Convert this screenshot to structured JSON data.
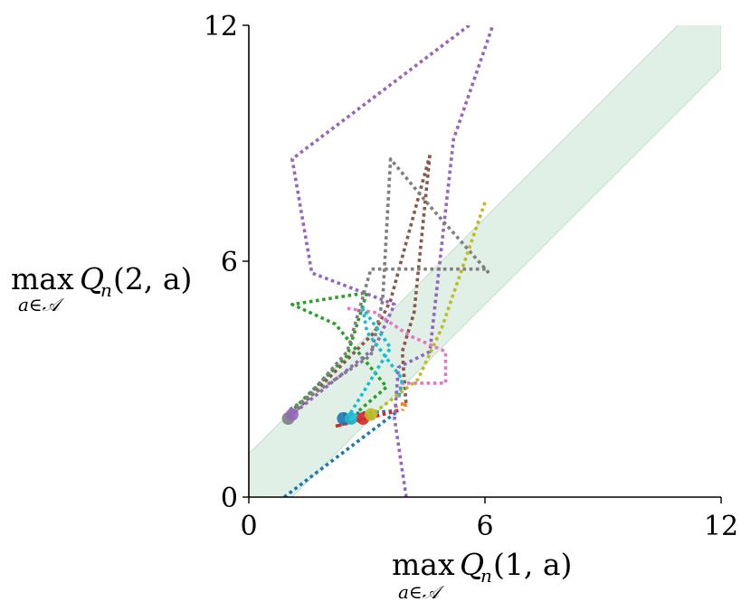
{
  "chart_data": {
    "type": "line",
    "title": "",
    "xlabel": {
      "operator": "max",
      "subscript": "a∈𝒜",
      "expr": "Q",
      "sub": "n",
      "args": "(1, a)"
    },
    "ylabel": {
      "operator": "max",
      "subscript": "a∈𝒜",
      "expr": "Q",
      "sub": "n",
      "args": "(2, a)"
    },
    "xlim": [
      0,
      12
    ],
    "ylim": [
      0,
      12
    ],
    "xticks": [
      0,
      6,
      12
    ],
    "yticks": [
      0,
      6,
      12
    ],
    "xtick_labels": [
      "0",
      "6",
      "12"
    ],
    "ytick_labels": [
      "0",
      "6",
      "12"
    ],
    "grid": false,
    "band": {
      "description_color": "#d4eadb",
      "lower_offset": -1.1,
      "upper_offset": 1.1,
      "x_range": [
        0,
        12
      ]
    },
    "series": [
      {
        "color": "#1f77b4",
        "points": [
          [
            0.9,
            0
          ],
          [
            3.8,
            2.2
          ],
          [
            2.3,
            2.1
          ]
        ]
      },
      {
        "color": "#d62728",
        "points": [
          [
            3.8,
            2.2
          ],
          [
            2.2,
            1.8
          ],
          [
            2.9,
            2.0
          ]
        ]
      },
      {
        "color": "#2ca02c",
        "points": [
          [
            2.8,
            2.2
          ],
          [
            3.5,
            2.8
          ],
          [
            2.2,
            4.4
          ],
          [
            1.1,
            4.9
          ],
          [
            3.0,
            5.2
          ],
          [
            2.5,
            3.6
          ],
          [
            1.0,
            2.1
          ]
        ]
      },
      {
        "color": "#ff7f0e",
        "points": [
          [
            3.7,
            2.3
          ],
          [
            4.0,
            2.4
          ],
          [
            3.9,
            2.2
          ]
        ]
      },
      {
        "color": "#9467bd",
        "points": [
          [
            4.0,
            0
          ],
          [
            3.7,
            2.0
          ],
          [
            3.8,
            3.3
          ],
          [
            4.6,
            3.7
          ],
          [
            5.2,
            9.1
          ],
          [
            6.2,
            12.0
          ]
        ]
      },
      {
        "color": "#9467bd",
        "points": [
          [
            5.6,
            12.0
          ],
          [
            1.1,
            8.6
          ],
          [
            1.6,
            5.7
          ],
          [
            3.7,
            4.9
          ],
          [
            3.2,
            3.8
          ],
          [
            1.1,
            2.1
          ]
        ]
      },
      {
        "color": "#8c564b",
        "points": [
          [
            1.0,
            2.0
          ],
          [
            3.2,
            4.2
          ],
          [
            3.6,
            5.0
          ],
          [
            4.6,
            8.7
          ]
        ]
      },
      {
        "color": "#8c564b",
        "points": [
          [
            4.6,
            8.7
          ],
          [
            4.2,
            4.7
          ],
          [
            3.9,
            3.7
          ],
          [
            4.0,
            2.3
          ]
        ]
      },
      {
        "color": "#7f7f7f",
        "points": [
          [
            1.0,
            2.0
          ],
          [
            2.5,
            3.7
          ],
          [
            3.1,
            5.8
          ],
          [
            6.1,
            5.8
          ]
        ]
      },
      {
        "color": "#7f7f7f",
        "points": [
          [
            6.1,
            5.7
          ],
          [
            4.6,
            7.4
          ],
          [
            3.6,
            8.6
          ],
          [
            3.4,
            5.0
          ],
          [
            3.1,
            3.6
          ],
          [
            1.0,
            2.2
          ]
        ]
      },
      {
        "color": "#e377c2",
        "points": [
          [
            2.5,
            4.8
          ],
          [
            3.2,
            4.7
          ],
          [
            4.1,
            4.1
          ],
          [
            5.0,
            3.7
          ],
          [
            5.0,
            2.9
          ],
          [
            3.9,
            2.9
          ],
          [
            3.8,
            2.5
          ]
        ]
      },
      {
        "color": "#17becf",
        "points": [
          [
            2.5,
            2.0
          ],
          [
            3.6,
            3.8
          ],
          [
            2.9,
            4.8
          ],
          [
            3.0,
            4.2
          ],
          [
            3.9,
            3.0
          ],
          [
            3.8,
            2.5
          ]
        ]
      },
      {
        "color": "#bcbd22",
        "points": [
          [
            6.0,
            7.5
          ],
          [
            4.9,
            4.3
          ],
          [
            4.3,
            3.0
          ],
          [
            3.0,
            2.0
          ]
        ]
      }
    ],
    "endpoints": [
      {
        "color": "#7f7f7f",
        "x": 1.0,
        "y": 2.0
      },
      {
        "color": "#9467bd",
        "x": 1.1,
        "y": 2.1
      },
      {
        "color": "#1f77b4",
        "x": 2.4,
        "y": 2.0
      },
      {
        "color": "#17becf",
        "x": 2.6,
        "y": 2.0
      },
      {
        "color": "#d62728",
        "x": 2.9,
        "y": 2.0
      },
      {
        "color": "#bcbd22",
        "x": 3.1,
        "y": 2.1
      }
    ]
  }
}
